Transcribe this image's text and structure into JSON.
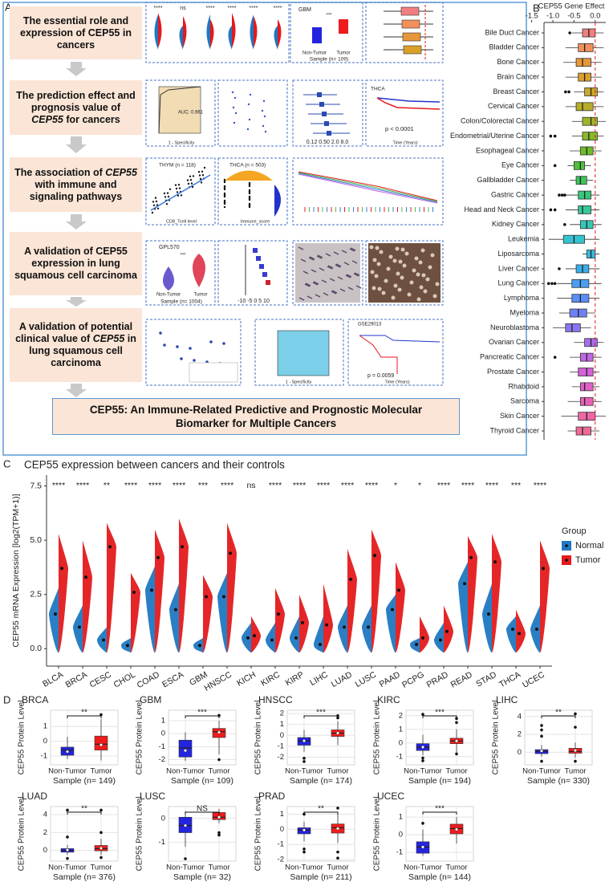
{
  "panel_labels": [
    "A",
    "B",
    "C",
    "D"
  ],
  "flowchart": {
    "steps": [
      {
        "parts": [
          "The essential role and expression of CEP55 in cancers"
        ]
      },
      {
        "parts": [
          "The prediction effect and prognosis value of ",
          "CEP55",
          " for cancers"
        ],
        "italic": 1
      },
      {
        "parts": [
          "The association of ",
          "CEP55",
          " with immune and signaling pathways"
        ],
        "italic": 1
      },
      {
        "parts": [
          "A validation of CEP55 expression in lung squamous cell carcinoma"
        ]
      },
      {
        "parts": [
          "A validation of potential clinical value of ",
          "CEP55",
          " in lung squamous cell carcinoma"
        ],
        "italic": 1
      }
    ],
    "conclusion": "CEP55: An Immune-Related Predictive and Prognostic Molecular Biomarker for Multiple Cancers"
  },
  "thumbnail_signif": [
    "****",
    "ns",
    "****",
    "****",
    "****",
    "****"
  ],
  "thumbnail_texts": [
    "GBM",
    "***",
    "Non-Tumor",
    "Tumor",
    "Sample (n= 109)",
    "AUC: 0.961",
    "1 - Specificity",
    "0.12 0.50 2.0 8.0",
    "THCA",
    "p < 0.0001",
    "Time (Years)",
    "THYM (n = 118)",
    "CD8_Tcell level",
    "THCA (n = 503)",
    "Immune_score",
    "GPL570",
    "***",
    "Non-Tumor",
    "Tumor",
    "Sample (n= 1004)",
    "-10 -5 0 5 10",
    "1 - Specificity",
    "p = 0.0059",
    "Time (Years)",
    "GSE29013"
  ],
  "chart_data": [
    {
      "type": "box_h",
      "xlabel": "CEP55 Gene Effect",
      "categories": [
        "Bile Duct Cancer",
        "Bladder Cancer",
        "Bone Cancer",
        "Brain Cancer",
        "Breast Cancer",
        "Cervical Cancer",
        "Colon/Colorectal Cancer",
        "Endometrial/Uterine Cancer",
        "Esophageal Cancer",
        "Eye Cancer",
        "Gallbladder Cancer",
        "Gastric Cancer",
        "Head and Neck Cancer",
        "Kidney Cancer",
        "Leukemia",
        "Liposarcoma",
        "Liver Cancer",
        "Lung Cancer",
        "Lymphoma",
        "Myeloma",
        "Neuroblastoma",
        "Ovarian Cancer",
        "Pancreatic Cancer",
        "Prostate Cancer",
        "Rhabdoid",
        "Sarcoma",
        "Skin Cancer",
        "Thyroid Cancer"
      ],
      "colors": [
        "#f08080",
        "#f2905a",
        "#e8963a",
        "#d9a02a",
        "#c8a82a",
        "#b5ad2a",
        "#9db52a",
        "#86ba2a",
        "#6dbd2a",
        "#4fc03a",
        "#3ec45a",
        "#36c77a",
        "#35c89a",
        "#34c8b8",
        "#33c4d0",
        "#33bce0",
        "#3aaee8",
        "#4a9ef0",
        "#5a8ef5",
        "#6f80f5",
        "#8a76f2",
        "#a86eec",
        "#c267e4",
        "#d462d8",
        "#e060c8",
        "#e862b8",
        "#ee66a8",
        "#f06a98"
      ],
      "low": [
        -0.55,
        -0.7,
        -0.75,
        -0.7,
        -0.5,
        -0.7,
        -0.55,
        -0.55,
        -0.6,
        -0.65,
        -0.6,
        -0.7,
        -0.7,
        -0.6,
        -1.1,
        -0.3,
        -0.7,
        -0.9,
        -0.9,
        -0.85,
        -1.0,
        -0.5,
        -0.6,
        -0.6,
        -0.55,
        -0.65,
        -0.8,
        -0.65
      ],
      "q1": [
        -0.3,
        -0.4,
        -0.45,
        -0.4,
        -0.25,
        -0.45,
        -0.3,
        -0.3,
        -0.35,
        -0.5,
        -0.45,
        -0.4,
        -0.4,
        -0.35,
        -0.75,
        -0.2,
        -0.45,
        -0.55,
        -0.55,
        -0.6,
        -0.7,
        -0.25,
        -0.35,
        -0.4,
        -0.35,
        -0.35,
        -0.4,
        -0.45
      ],
      "median": [
        -0.15,
        -0.25,
        -0.3,
        -0.25,
        -0.1,
        -0.3,
        -0.1,
        -0.15,
        -0.2,
        -0.35,
        -0.35,
        -0.25,
        -0.3,
        -0.2,
        -0.5,
        -0.1,
        -0.3,
        -0.35,
        -0.35,
        -0.4,
        -0.55,
        -0.1,
        -0.2,
        -0.2,
        -0.25,
        -0.25,
        -0.2,
        -0.3
      ],
      "q3": [
        0.0,
        -0.05,
        -0.1,
        -0.1,
        0.05,
        -0.05,
        0.05,
        0.05,
        -0.05,
        -0.25,
        -0.2,
        -0.1,
        -0.1,
        -0.05,
        -0.25,
        0.0,
        -0.15,
        -0.15,
        -0.15,
        -0.2,
        -0.35,
        0.05,
        -0.05,
        -0.05,
        -0.05,
        -0.05,
        0.0,
        -0.1
      ],
      "high": [
        0.2,
        0.2,
        0.15,
        0.15,
        0.2,
        0.2,
        0.25,
        0.2,
        0.15,
        -0.1,
        -0.05,
        0.1,
        0.1,
        0.15,
        0.1,
        0.1,
        0.1,
        0.15,
        0.1,
        0.0,
        -0.1,
        0.2,
        0.15,
        0.1,
        0.1,
        0.15,
        0.25,
        0.1
      ],
      "outliers": [
        [
          -0.6
        ],
        [],
        [],
        [],
        [
          -0.7,
          -0.62
        ],
        [],
        [],
        [
          -1.05,
          -0.95
        ],
        [],
        [
          -0.95
        ],
        [],
        [
          -0.85,
          -0.78,
          -0.72
        ],
        [
          -1.05,
          -0.95
        ],
        [
          -0.72
        ],
        [],
        [],
        [
          -0.85
        ],
        [
          -1.1,
          -1.02,
          -0.95
        ],
        [],
        [],
        [],
        [],
        [
          -0.95
        ],
        [],
        [],
        [],
        [],
        []
      ],
      "xlim": [
        -1.55,
        0.25
      ],
      "xticks": [
        -1.5,
        {
          "value": -1.0,
          "label": "-1.0"
        },
        -0.5,
        {
          "value": 0.0,
          "label": "0.0"
        }
      ],
      "reference_line": 0,
      "reference_color": "#e41a1c"
    },
    {
      "type": "split_violin",
      "title": "CEP55 expression between cancers and their controls",
      "ylabel": "CEP55 mRNA Expression [log2(TPM+1)]",
      "legend_title": "Group",
      "legend": "right",
      "categories": [
        "BLCA",
        "BRCA",
        "CESC",
        "CHOL",
        "COAD",
        "ESCA",
        "GBM",
        "HNSCC",
        "KICH",
        "KIRC",
        "KIRP",
        "LIHC",
        "LUAD",
        "LUSC",
        "PAAD",
        "PCPG",
        "PRAD",
        "READ",
        "STAD",
        "THCA",
        "UCEC"
      ],
      "significance": [
        "****",
        "****",
        "**",
        "****",
        "****",
        "****",
        "***",
        "****",
        "ns",
        "****",
        "****",
        "****",
        "****",
        "****",
        "*",
        "*",
        "****",
        "****",
        "****",
        "***",
        "****"
      ],
      "series": [
        {
          "name": "Normal",
          "color": "#1f78c1",
          "values": [
            1.6,
            1.0,
            0.4,
            0.15,
            2.7,
            1.8,
            0.15,
            2.4,
            0.5,
            0.4,
            0.5,
            0.2,
            1.0,
            1.0,
            1.8,
            0.2,
            0.4,
            3.0,
            1.6,
            0.9,
            0.9
          ],
          "upper": [
            2.8,
            2.0,
            1.0,
            0.5,
            3.8,
            3.0,
            0.5,
            3.5,
            1.2,
            1.2,
            1.5,
            1.5,
            2.0,
            2.0,
            2.5,
            0.5,
            1.2,
            4.0,
            3.0,
            1.5,
            2.0
          ]
        },
        {
          "name": "Tumor",
          "color": "#e41a1c",
          "values": [
            3.7,
            3.3,
            4.7,
            2.6,
            4.2,
            4.7,
            2.4,
            4.4,
            0.6,
            1.6,
            1.2,
            1.1,
            3.2,
            4.3,
            2.7,
            0.5,
            0.8,
            4.2,
            4.0,
            0.7,
            3.7
          ],
          "upper": [
            5.3,
            5.0,
            5.8,
            3.5,
            5.5,
            6.0,
            3.4,
            5.8,
            1.5,
            2.8,
            2.5,
            3.0,
            4.6,
            5.5,
            4.0,
            1.5,
            2.0,
            5.2,
            5.3,
            1.8,
            5.0
          ]
        }
      ],
      "ylim": [
        -0.8,
        8
      ],
      "yticks": [
        {
          "value": 0,
          "label": "0.0"
        },
        {
          "value": 2.5,
          "label": "2.5"
        },
        {
          "value": 5,
          "label": "5.0"
        },
        {
          "value": 7.5,
          "label": "7.5"
        }
      ]
    },
    {
      "type": "box",
      "title": "BRCA",
      "ylabel": "CEP55 Protein Level",
      "xlabel": "Sample (n= 149)",
      "categories": [
        "Non-Tumor",
        "Tumor"
      ],
      "colors": [
        "#2323e0",
        "#ee1c1c"
      ],
      "significance": "**",
      "low": [
        -1.2,
        -1.3
      ],
      "q1": [
        -0.95,
        -0.6
      ],
      "median": [
        -0.6,
        -0.2
      ],
      "q3": [
        -0.4,
        0.35
      ],
      "high": [
        0.3,
        1.5
      ],
      "mean": [
        -0.7,
        -0.25
      ],
      "outliers": [
        [],
        [
          1.8
        ]
      ],
      "ylim": [
        -1.6,
        2.1
      ],
      "yticks": [
        -1,
        0,
        1
      ],
      "grid": true
    },
    {
      "type": "box",
      "title": "GBM",
      "ylabel": "CEP55 Protein Level",
      "xlabel": "Sample (n= 109)",
      "categories": [
        "Non-Tumor",
        "Tumor"
      ],
      "colors": [
        "#2323e0",
        "#ee1c1c"
      ],
      "significance": "***",
      "low": [
        -2.1,
        -1.6
      ],
      "q1": [
        -1.8,
        -0.3
      ],
      "median": [
        -1.1,
        0.15
      ],
      "q3": [
        -0.5,
        0.4
      ],
      "high": [
        0.1,
        1.0
      ],
      "mean": [
        -1.3,
        0.1
      ],
      "outliers": [
        [],
        [
          1.4,
          -2.0
        ]
      ],
      "ylim": [
        -2.4,
        1.8
      ],
      "yticks": [
        -2,
        -1,
        0,
        1
      ],
      "grid": true
    },
    {
      "type": "box",
      "title": "HNSCC",
      "ylabel": "CEP55 Protein Level",
      "xlabel": "Sample (n= 174)",
      "categories": [
        "Non-Tumor",
        "Tumor"
      ],
      "colors": [
        "#2323e0",
        "#ee1c1c"
      ],
      "significance": "***",
      "low": [
        -1.5,
        -0.9
      ],
      "q1": [
        -0.9,
        -0.1
      ],
      "median": [
        -0.5,
        0.2
      ],
      "q3": [
        -0.2,
        0.5
      ],
      "high": [
        0.5,
        1.3
      ],
      "mean": [
        -0.5,
        0.2
      ],
      "outliers": [
        [
          -2.1,
          -2.4
        ],
        [
          1.8,
          1.6
        ]
      ],
      "ylim": [
        -2.7,
        2.3
      ],
      "yticks": [
        -2,
        -1,
        0,
        1,
        2
      ],
      "grid": true
    },
    {
      "type": "box",
      "title": "KIRC",
      "ylabel": "CEP55 Protein Level",
      "xlabel": "Sample (n= 194)",
      "categories": [
        "Non-Tumor",
        "Tumor"
      ],
      "colors": [
        "#2323e0",
        "#ee1c1c"
      ],
      "significance": "***",
      "low": [
        -0.9,
        -0.7
      ],
      "q1": [
        -0.55,
        -0.05
      ],
      "median": [
        -0.3,
        0.15
      ],
      "q3": [
        -0.05,
        0.35
      ],
      "high": [
        0.6,
        1.0
      ],
      "mean": [
        -0.3,
        0.15
      ],
      "outliers": [
        [
          2.1,
          -1.1,
          -1.3
        ],
        [
          1.8,
          1.5,
          -0.8
        ]
      ],
      "ylim": [
        -1.6,
        2.4
      ],
      "yticks": [
        -1,
        0,
        1,
        2
      ],
      "grid": true
    },
    {
      "type": "box",
      "title": "LIHC",
      "ylabel": "CEP55 Protein Level",
      "xlabel": "Sample (n= 330)",
      "categories": [
        "Non-Tumor",
        "Tumor"
      ],
      "colors": [
        "#2323e0",
        "#ee1c1c"
      ],
      "significance": "**",
      "low": [
        -0.5,
        -0.6
      ],
      "q1": [
        -0.15,
        -0.1
      ],
      "median": [
        0.1,
        0.1
      ],
      "q3": [
        0.3,
        0.45
      ],
      "high": [
        0.8,
        1.1
      ],
      "mean": [
        0.15,
        0.2
      ],
      "outliers": [
        [
          3.0,
          2.5,
          1.8,
          -1.0
        ],
        [
          4.3,
          2.8,
          -1.0
        ]
      ],
      "ylim": [
        -1.4,
        4.7
      ],
      "yticks": [
        0,
        2,
        4
      ],
      "grid": true
    },
    {
      "type": "box",
      "title": "LUAD",
      "ylabel": "CEP55 Protein Level",
      "xlabel": "Sample (n= 376)",
      "categories": [
        "Non-Tumor",
        "Tumor"
      ],
      "colors": [
        "#2323e0",
        "#ee1c1c"
      ],
      "significance": "**",
      "low": [
        -0.5,
        -0.5
      ],
      "q1": [
        -0.2,
        -0.05
      ],
      "median": [
        0,
        0.2
      ],
      "q3": [
        0.2,
        0.55
      ],
      "high": [
        0.6,
        1.3
      ],
      "mean": [
        0.05,
        0.25
      ],
      "outliers": [
        [
          4.5,
          1.5,
          -0.9
        ],
        [
          4.5,
          2.0,
          -0.8
        ]
      ],
      "ylim": [
        -1.2,
        4.9
      ],
      "yticks": [
        0,
        2,
        4
      ],
      "grid": true
    },
    {
      "type": "box",
      "title": "LUSC",
      "ylabel": "CEP55 Protein Level",
      "xlabel": "Sample (n= 32)",
      "categories": [
        "Non-Tumor",
        "Tumor"
      ],
      "colors": [
        "#2323e0",
        "#ee1c1c"
      ],
      "significance": "NS",
      "low": [
        -1.2,
        -0.2
      ],
      "q1": [
        -0.6,
        -0.05
      ],
      "median": [
        -0.3,
        0.05
      ],
      "q3": [
        0.05,
        0.25
      ],
      "high": [
        0.3,
        0.4
      ],
      "mean": [
        -0.3,
        0.05
      ],
      "outliers": [
        [
          -1.7
        ],
        [
          -0.6,
          -0.7
        ]
      ],
      "ylim": [
        -1.8,
        0.5
      ],
      "yticks": [
        -1,
        0
      ],
      "grid": true
    },
    {
      "type": "box",
      "title": "PRAD",
      "ylabel": "CEP55 Protein Level",
      "xlabel": "Sample (n= 211)",
      "categories": [
        "Non-Tumor",
        "Tumor"
      ],
      "colors": [
        "#2323e0",
        "#ee1c1c"
      ],
      "significance": "**",
      "low": [
        -0.8,
        -0.9
      ],
      "q1": [
        -0.3,
        -0.25
      ],
      "median": [
        -0.05,
        0.1
      ],
      "q3": [
        0.1,
        0.35
      ],
      "high": [
        0.5,
        1.0
      ],
      "mean": [
        -0.05,
        0.05
      ],
      "outliers": [
        [
          -1.3,
          -1.5,
          1.0
        ],
        [
          -1.9,
          -1.5,
          1.4
        ]
      ],
      "ylim": [
        -2.1,
        1.5
      ],
      "yticks": [
        -2,
        -1,
        0,
        1
      ],
      "grid": true
    },
    {
      "type": "box",
      "title": "UCEC",
      "ylabel": "CEP55 Protein Level",
      "xlabel": "Sample (n= 144)",
      "categories": [
        "Non-Tumor",
        "Tumor"
      ],
      "colors": [
        "#2323e0",
        "#ee1c1c"
      ],
      "significance": "***",
      "low": [
        -1.2,
        -0.5
      ],
      "q1": [
        -1.05,
        0.05
      ],
      "median": [
        -0.7,
        0.35
      ],
      "q3": [
        -0.4,
        0.6
      ],
      "high": [
        0.3,
        1.0
      ],
      "mean": [
        -0.7,
        0.3
      ],
      "outliers": [
        [
          0.65
        ],
        []
      ],
      "ylim": [
        -1.5,
        1.6
      ],
      "yticks": [
        -1,
        0,
        1
      ],
      "grid": true
    }
  ]
}
